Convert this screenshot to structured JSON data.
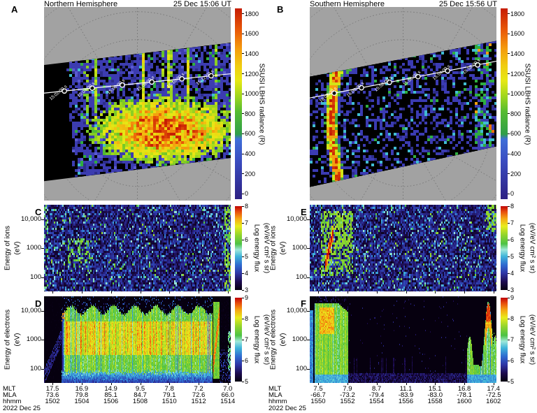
{
  "figure": {
    "date": "2022 Dec 25"
  },
  "maps": {
    "north": {
      "panel_label": "A",
      "title": "Northern Hemisphere",
      "timestamp": "25 Dec 15:06 UT",
      "colorbar": {
        "title": "SSUSI LBHS radiance (R)",
        "min": 0,
        "max": 1800,
        "ticks": [
          1800,
          1600,
          1400,
          1200,
          1000,
          800,
          600,
          400,
          200,
          0
        ]
      },
      "track_times": [
        "15:02:00 s",
        "15:04:00 s",
        "15:06:00 s",
        "15:08:00 s",
        "15:10:00 s",
        "15:12:00 s"
      ]
    },
    "south": {
      "panel_label": "B",
      "title": "Southern Hemisphere",
      "timestamp": "25 Dec 15:56 UT",
      "colorbar": {
        "title": "SSUSI LBHS radiance (R)",
        "min": 0,
        "max": 1800,
        "ticks": [
          1800,
          1600,
          1400,
          1200,
          1000,
          800,
          600,
          400,
          200,
          0
        ]
      },
      "track_times": [
        "16:02:00 s",
        "16:00:00 s",
        "15:58:00 s",
        "15:56:00 s",
        "15:54:00 s",
        "15:52:00 s"
      ]
    }
  },
  "spectrograms": {
    "C": {
      "panel_label": "C",
      "ylabel": "Energy of ions",
      "yunit": "(eV)",
      "yticks": [
        "10,000",
        "1000",
        "100"
      ],
      "colorbar": {
        "line1": "Log energy flux",
        "line2": "(eV/eV cm² s sr)",
        "min": 3,
        "max": 8,
        "ticks": [
          8,
          7,
          6,
          5,
          4,
          3
        ]
      }
    },
    "D": {
      "panel_label": "D",
      "ylabel": "Energy of electrons",
      "yunit": "(eV)",
      "yticks": [
        "10,000",
        "1000",
        "100"
      ],
      "colorbar": {
        "line1": "Log energy flux",
        "line2": "(eV/eV cm² s sr)",
        "min": 5,
        "max": 9,
        "ticks": [
          9,
          8,
          7,
          6,
          5
        ]
      }
    },
    "E": {
      "panel_label": "E",
      "ylabel": "Energy of ions",
      "yunit": "(eV)",
      "yticks": [
        "10,000",
        "1000",
        "100"
      ],
      "colorbar": {
        "line1": "Log energy flux",
        "line2": "(eV/eV cm² s sr)",
        "min": 3,
        "max": 8,
        "ticks": [
          8,
          7,
          6,
          5,
          4,
          3
        ]
      }
    },
    "F": {
      "panel_label": "F",
      "ylabel": "Energy of electrons",
      "yunit": "(eV)",
      "yticks": [
        "10,000",
        "1000",
        "100"
      ],
      "colorbar": {
        "line1": "Log energy flux",
        "line2": "(eV/eV cm² s sr)",
        "min": 5,
        "max": 9,
        "ticks": [
          9,
          8,
          7,
          6,
          5
        ]
      }
    }
  },
  "axes": {
    "north": {
      "row_labels": [
        "MLT",
        "MLA",
        "hhmm"
      ],
      "values": {
        "MLT": [
          "17.5",
          "16.9",
          "14.9",
          "9.5",
          "7.8",
          "7.2",
          "7.0"
        ],
        "MLA": [
          "73.6",
          "79.8",
          "85.1",
          "84.7",
          "79.1",
          "72.6",
          "66.0"
        ],
        "hhmm": [
          "1502",
          "1504",
          "1506",
          "1508",
          "1510",
          "1512",
          "1514"
        ]
      },
      "date": "2022 Dec 25"
    },
    "south": {
      "row_labels": [
        "MLT",
        "MLA",
        "hhmm"
      ],
      "values": {
        "MLT": [
          "7.5",
          "7.9",
          "8.7",
          "11.1",
          "15.1",
          "16.8",
          "17.4"
        ],
        "MLA": [
          "-66.7",
          "-73.2",
          "-79.4",
          "-83.9",
          "-83.0",
          "-78.1",
          "-72.5"
        ],
        "hhmm": [
          "1550",
          "1552",
          "1554",
          "1556",
          "1558",
          "1600",
          "1602"
        ]
      },
      "date": "2022 Dec 25"
    }
  },
  "chart_data": [
    {
      "id": "A",
      "type": "heatmap",
      "title": "Northern Hemisphere",
      "timestamp": "25 Dec 15:06 UT",
      "quantity": "SSUSI LBHS radiance",
      "unit": "R",
      "color_scale_range": [
        0,
        1800
      ],
      "colorbar_ticks": [
        0,
        200,
        400,
        600,
        800,
        1000,
        1200,
        1400,
        1600,
        1800
      ],
      "satellite_track_times": [
        "15:02:00",
        "15:04:00",
        "15:06:00",
        "15:08:00",
        "15:10:00",
        "15:12:00"
      ],
      "description": "Auroral oval bright patch (600-1800 R, green-yellow-red) equatorward of satellite track; blue background emission 100-400 R inside imager swath; gray dotted polar MLT/MLAT grid outside",
      "render": {
        "swath": [
          [
            0,
            0.3
          ],
          [
            1,
            0.185
          ],
          [
            1,
            0.78
          ],
          [
            0,
            0.9
          ]
        ],
        "noise_from": 0.125,
        "oval": {
          "cx": 0.64,
          "cy": 0.63,
          "rx": 0.37,
          "ry": 0.165
        },
        "track": {
          "y0": 0.445,
          "y1": 0.345,
          "markers": [
            0.109,
            0.258,
            0.419,
            0.577,
            0.738,
            0.895
          ]
        }
      }
    },
    {
      "id": "B",
      "type": "heatmap",
      "title": "Southern Hemisphere",
      "timestamp": "25 Dec 15:56 UT",
      "quantity": "SSUSI LBHS radiance",
      "unit": "R",
      "color_scale_range": [
        0,
        1800
      ],
      "colorbar_ticks": [
        0,
        200,
        400,
        600,
        800,
        1000,
        1200,
        1400,
        1600,
        1800
      ],
      "satellite_track_times": [
        "16:02:00",
        "16:00:00",
        "15:58:00",
        "15:56:00",
        "15:54:00",
        "15:52:00"
      ],
      "description": "Mostly dark swath with intense curved auroral arc (red/orange core ~1800 R) on dusk-left edge and weaker green-blue arc on right edge",
      "render": {
        "swath": [
          [
            0,
            0.36
          ],
          [
            1,
            0.175
          ],
          [
            1,
            0.72
          ],
          [
            0,
            0.93
          ]
        ],
        "arc": {
          "x": 0.165,
          "bow": 0.055,
          "y0": 0.2,
          "y1": 0.97
        },
        "band": {
          "x": 0.92,
          "y0": 0.14,
          "y1": 0.75
        },
        "track": {
          "y0": 0.47,
          "y1": 0.28,
          "markers": [
            0.131,
            0.277,
            0.427,
            0.58,
            0.738,
            0.899
          ]
        }
      }
    },
    {
      "id": "C",
      "type": "spectrogram",
      "species": "ions",
      "hemisphere": "north",
      "x_ticks_hhmm": [
        "1502",
        "1504",
        "1506",
        "1508",
        "1510",
        "1512",
        "1514"
      ],
      "y_axis": "Energy of ions (eV), log scale ~30-30,000",
      "z_axis": "Log energy flux (eV/eV cm² s sr)",
      "z_range": [
        3,
        8
      ],
      "description": "Weak scattered ion flux (log 3.5-5) with modest enhancement ~1504-1505 UT at 0.2-3 keV and at right edge",
      "render": {
        "patch": {
          "x0": 0.12,
          "x1": 0.24,
          "f0": 0.28,
          "f1": 0.62
        },
        "edge_col": 0.965
      }
    },
    {
      "id": "D",
      "type": "spectrogram",
      "species": "electrons",
      "hemisphere": "north",
      "x_ticks_hhmm": [
        "1502",
        "1504",
        "1506",
        "1508",
        "1510",
        "1512",
        "1514"
      ],
      "y_axis": "Energy of electrons (eV), log scale ~30-30,000",
      "z_axis": "Log energy flux (eV/eV cm² s sr)",
      "z_range": [
        5,
        9
      ],
      "description": "Broad intense electron precipitation (log flux 7.5-8.5) from ~1503 to ~1513 UT spanning 50 eV-10 keV with yellow core and discrete arc near 1513 UT",
      "render": {
        "band": {
          "x0": 0.09,
          "x1": 0.9,
          "top": 0.85,
          "bottom": 0.13
        },
        "entry_spike": {
          "x0": 0.088,
          "x1": 0.115
        },
        "red_speckle": {
          "x0": 0.4,
          "x1": 0.64,
          "f0": 0.5,
          "f1": 0.62
        },
        "exit_arc": {
          "x0": 0.905,
          "x1": 0.94
        }
      }
    },
    {
      "id": "E",
      "type": "spectrogram",
      "species": "ions",
      "hemisphere": "south",
      "x_ticks_hhmm": [
        "1550",
        "1552",
        "1554",
        "1556",
        "1558",
        "1600",
        "1602"
      ],
      "y_axis": "Energy of ions (eV), log scale ~30-30,000",
      "z_axis": "Log energy flux (eV/eV cm² s sr)",
      "z_range": [
        3,
        8
      ],
      "description": "Energy-dispersed ion injection ~1551 UT (red-orange diagonal rising 0.2-5 keV, log flux ~8) inside green patch; weak flux elsewhere; green blob at high energy near 1602 UT",
      "render": {
        "blob": {
          "x0": 0.055,
          "x1": 0.23,
          "f0": 0.2,
          "f1": 0.95
        },
        "diag": {
          "u0": 0.075,
          "u1": 0.125,
          "f0": 0.28,
          "f1": 0.72
        },
        "corner": {
          "x0": 0.94,
          "f0": 0.72
        }
      }
    },
    {
      "id": "F",
      "type": "spectrogram",
      "species": "electrons",
      "hemisphere": "south",
      "x_ticks_hhmm": [
        "1550",
        "1552",
        "1554",
        "1556",
        "1558",
        "1600",
        "1602"
      ],
      "y_axis": "Energy of electrons (eV), log scale ~30-30,000",
      "z_axis": "Log energy flux (eV/eV cm² s sr)",
      "z_range": [
        5,
        9
      ],
      "description": "Strong electron precipitation 1550-1552 UT (green with orange 1-10 keV patch), quiet polar cap 1553-1559 UT, inverted-V arcs near 1601 UT with red peak at ~5-10 keV",
      "render": {
        "blob": {
          "x0": 0.025,
          "x1": 0.205
        },
        "hot": {
          "x0": 0.05,
          "x1": 0.13,
          "f0": 0.58,
          "f1": 0.88
        },
        "quiet": {
          "x0": 0.21,
          "x1": 0.84
        },
        "peak": {
          "center": 0.955,
          "width": 0.03,
          "height": 0.95
        }
      }
    }
  ]
}
